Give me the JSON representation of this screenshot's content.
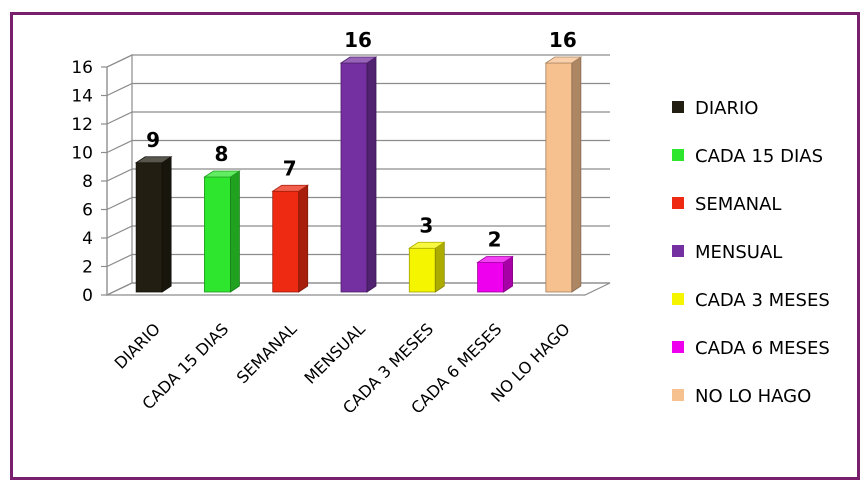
{
  "chart_data": {
    "type": "bar",
    "categories": [
      "DIARIO",
      "CADA 15 DIAS",
      "SEMANAL",
      "MENSUAL",
      "CADA 3 MESES",
      "CADA 6 MESES",
      "NO LO HAGO"
    ],
    "values": [
      9,
      8,
      7,
      16,
      3,
      2,
      16
    ],
    "colors": [
      "#221e12",
      "#2ee62e",
      "#ee2b12",
      "#7430a0",
      "#f5f500",
      "#ee00ee",
      "#f7c08f"
    ],
    "ylim": [
      0,
      16
    ],
    "yticks": [
      "0",
      "2",
      "4",
      "6",
      "8",
      "10",
      "12",
      "14",
      "16"
    ],
    "grid": true,
    "legend_position": "right",
    "title": "",
    "xlabel": "",
    "ylabel": ""
  }
}
